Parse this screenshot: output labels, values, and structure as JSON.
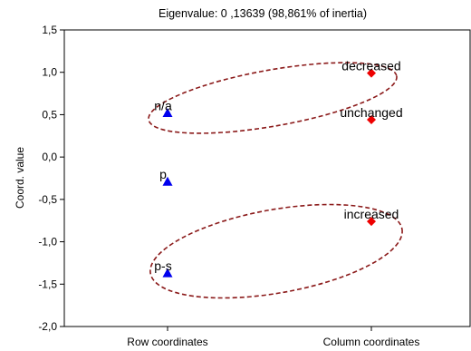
{
  "chart_data": {
    "type": "scatter",
    "title": "Eigenvalue: 0 ,13639 (98,861% of inertia)",
    "xlabel": "",
    "ylabel": "Coord. value",
    "ylim": [
      -2.0,
      1.5
    ],
    "yticks": [
      1.5,
      1.0,
      0.5,
      0.0,
      -0.5,
      -1.0,
      -1.5,
      -2.0
    ],
    "ytick_labels": [
      "1,5",
      "1,0",
      "0,5",
      "0,0",
      "-0,5",
      "-1,0",
      "-1,5",
      "-2,0"
    ],
    "categories": [
      "Row coordinates",
      "Column coordinates"
    ],
    "grid": false,
    "series": [
      {
        "category": "Row coordinates",
        "marker": "triangle",
        "color": "#0000ee",
        "points": [
          {
            "label": "n/a",
            "y": 0.52
          },
          {
            "label": "p",
            "y": -0.29
          },
          {
            "label": "p-s",
            "y": -1.37
          }
        ]
      },
      {
        "category": "Column coordinates",
        "marker": "diamond",
        "color": "#ee0000",
        "points": [
          {
            "label": "decreased",
            "y": 0.99
          },
          {
            "label": "unchanged",
            "y": 0.44
          },
          {
            "label": "increased",
            "y": -0.76
          }
        ]
      }
    ],
    "annotations": {
      "ellipse_color": "#8b1a1a",
      "ellipses": [
        {
          "encloses": [
            "n/a",
            "decreased",
            "unchanged"
          ]
        },
        {
          "encloses": [
            "p-s",
            "increased"
          ]
        }
      ]
    }
  }
}
